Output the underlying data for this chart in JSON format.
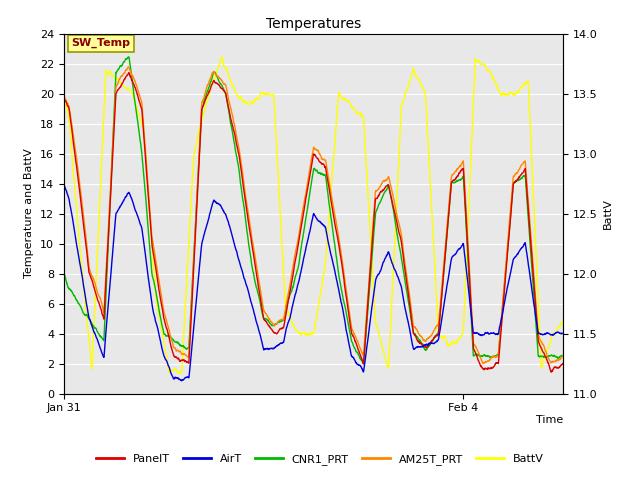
{
  "title": "Temperatures",
  "xlabel": "Time",
  "ylabel_left": "Temperature and BattV",
  "ylabel_right": "BattV",
  "xlim_days": [
    0,
    5.0
  ],
  "ylim_left": [
    0,
    24
  ],
  "ylim_right": [
    11.0,
    14.0
  ],
  "xtick_positions": [
    0.0,
    4.0
  ],
  "xtick_labels": [
    "Jan 31",
    "Feb 4"
  ],
  "ytick_left": [
    0,
    2,
    4,
    6,
    8,
    10,
    12,
    14,
    16,
    18,
    20,
    22,
    24
  ],
  "ytick_right": [
    11.0,
    11.5,
    12.0,
    12.5,
    13.0,
    13.5,
    14.0
  ],
  "bg_color": "#e8e8e8",
  "colors": {
    "PanelT": "#dd0000",
    "AirT": "#0000dd",
    "CNR1_PRT": "#00bb00",
    "AM25T_PRT": "#ff8800",
    "BattV": "#ffff00"
  },
  "annotation_text": "SW_Temp",
  "annotation_color": "#880000",
  "annotation_bg": "#ffff99",
  "annotation_border": "#999900"
}
